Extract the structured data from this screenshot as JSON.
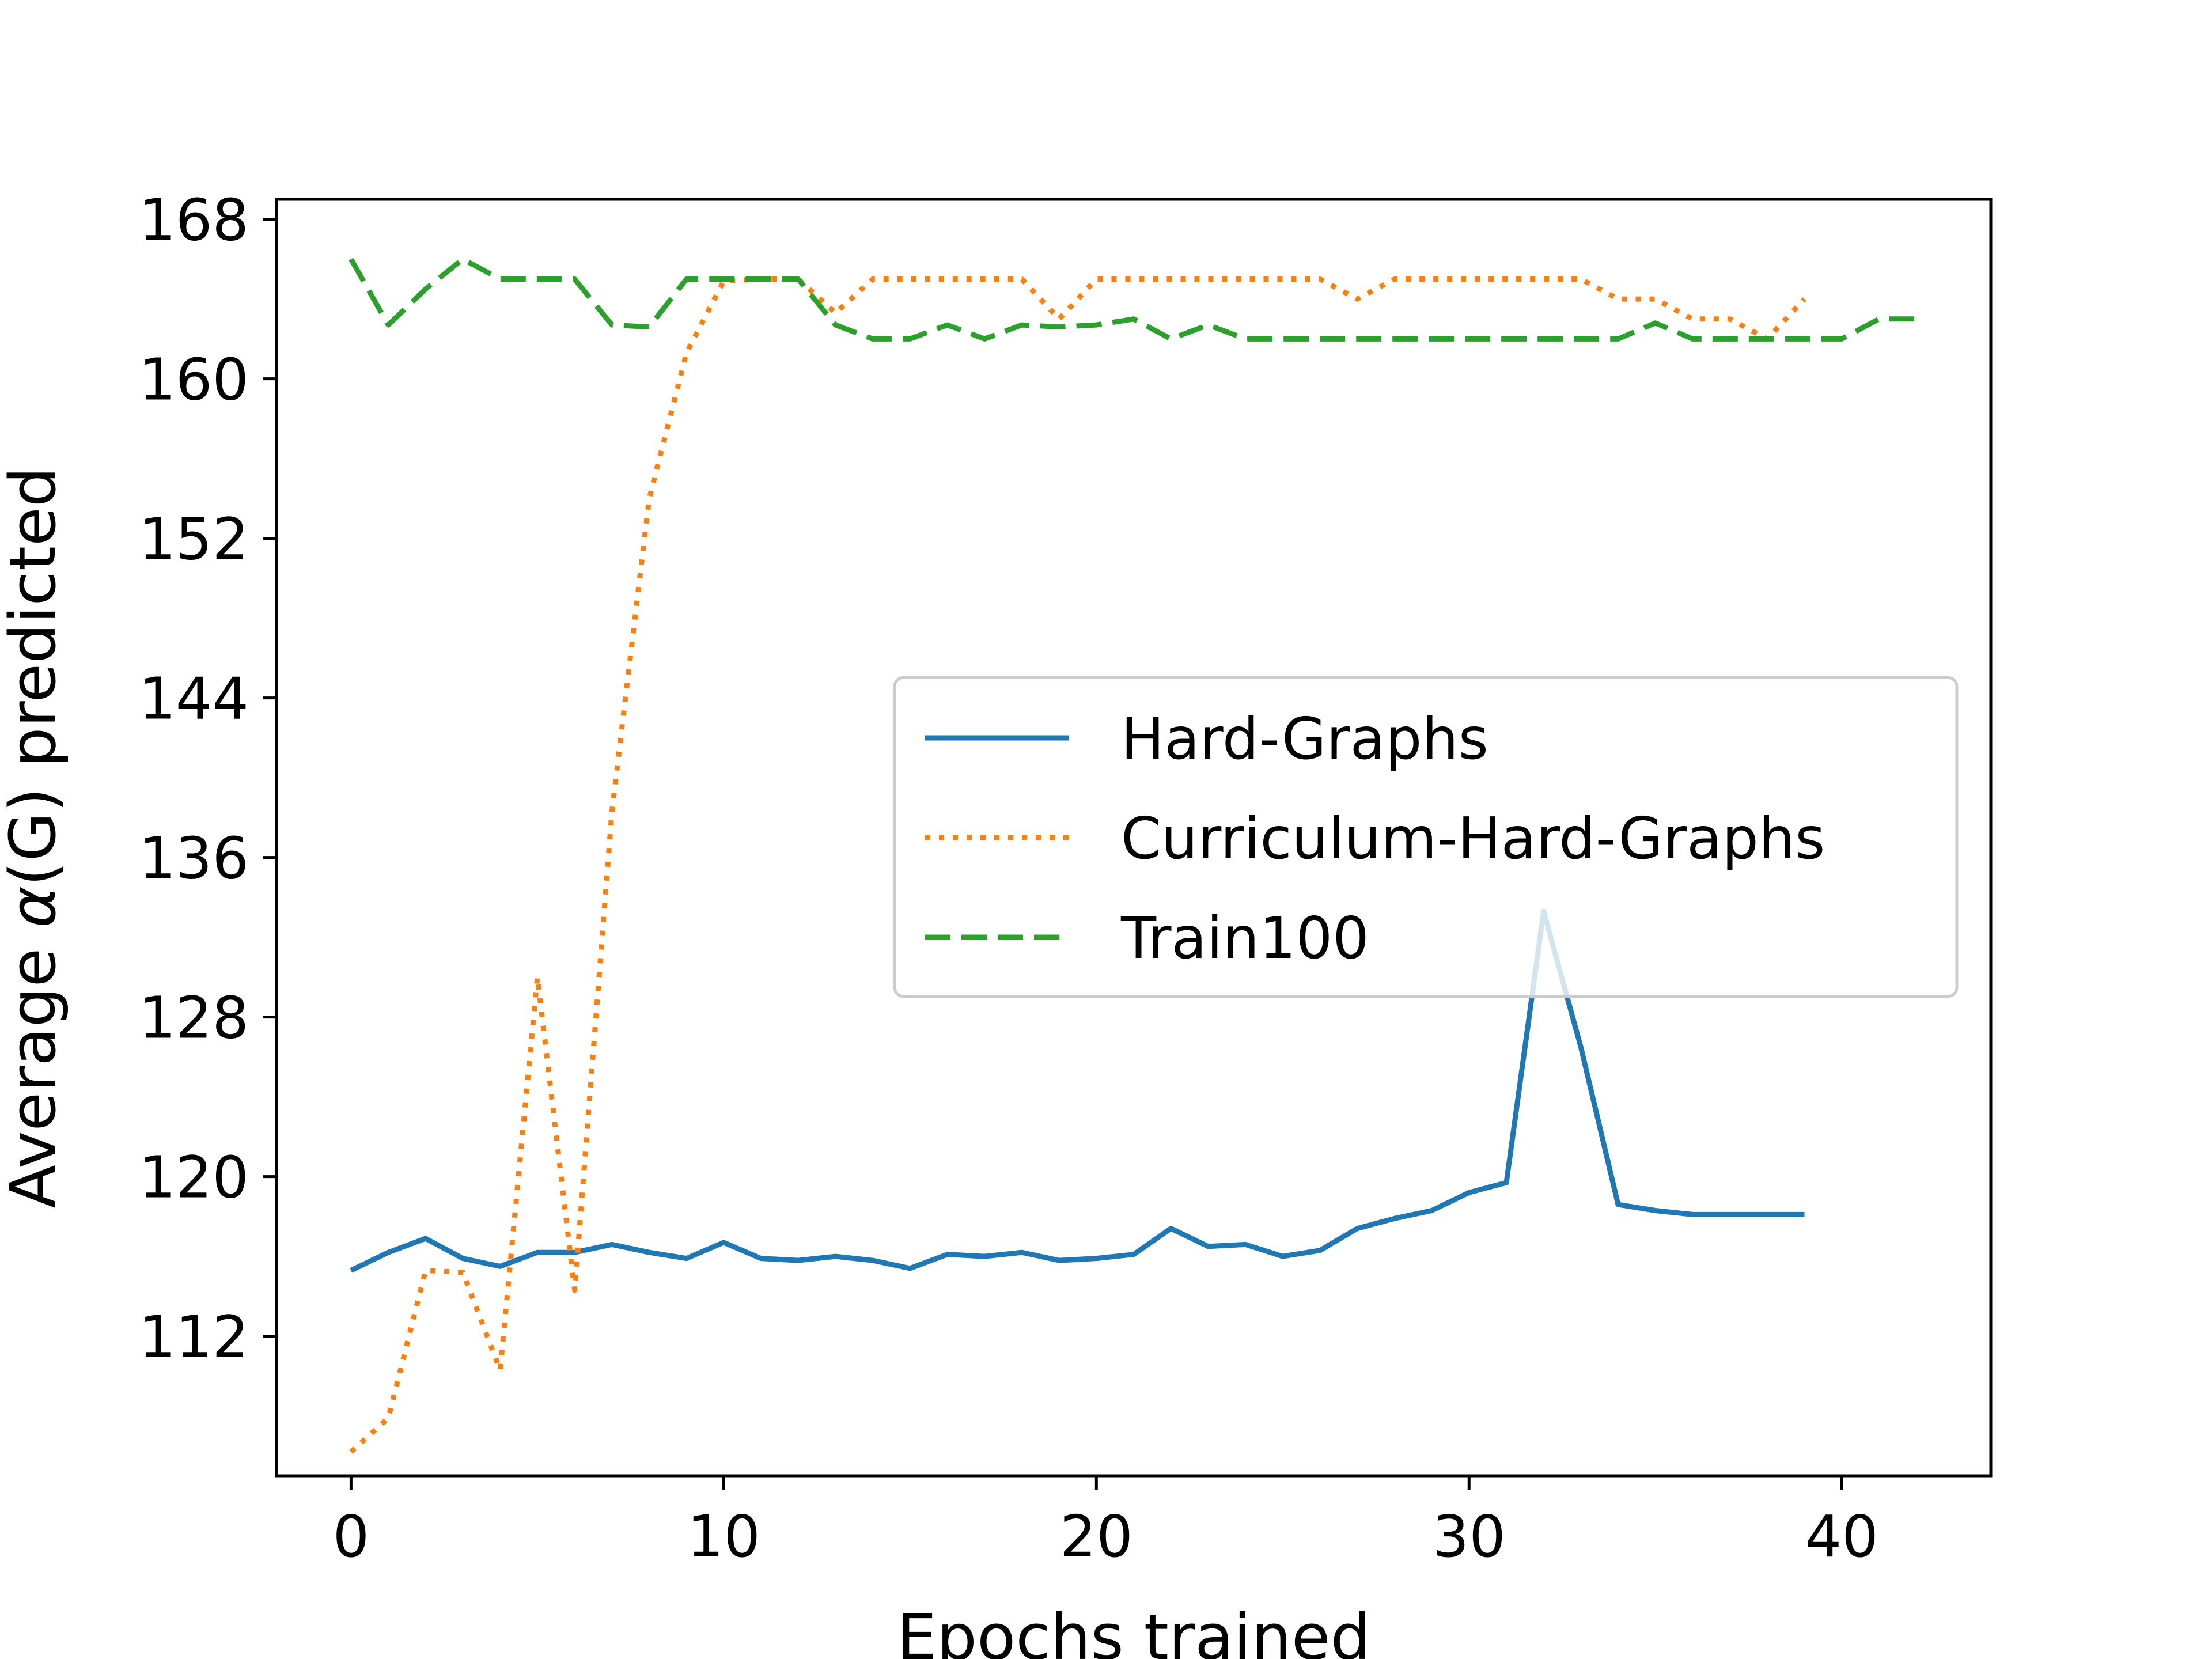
{
  "chart_data": {
    "type": "line",
    "xlabel": "Epochs trained",
    "ylabel_prefix": "Average ",
    "ylabel_symbol": "α",
    "ylabel_arg": "(G)",
    "ylabel_suffix": " predicted",
    "xlim": [
      -2,
      44
    ],
    "ylim": [
      105,
      169
    ],
    "xticks": [
      0,
      10,
      20,
      30,
      40
    ],
    "yticks": [
      112,
      120,
      128,
      136,
      144,
      152,
      160,
      168
    ],
    "grid": false,
    "legend_position": "center-right",
    "series": [
      {
        "name": "Hard-Graphs",
        "color": "#1f77b4",
        "style": "solid",
        "x": [
          0,
          1,
          2,
          3,
          4,
          5,
          6,
          7,
          8,
          9,
          10,
          11,
          12,
          13,
          14,
          15,
          16,
          17,
          18,
          19,
          20,
          21,
          22,
          23,
          24,
          25,
          26,
          27,
          28,
          29,
          30,
          31,
          32,
          33,
          34,
          35,
          36,
          37,
          38,
          39
        ],
        "y": [
          115.3,
          116.2,
          116.9,
          115.9,
          115.5,
          116.2,
          116.2,
          116.6,
          116.2,
          115.9,
          116.7,
          115.9,
          115.8,
          116.0,
          115.8,
          115.4,
          116.1,
          116.0,
          116.2,
          115.8,
          115.9,
          116.1,
          117.4,
          116.5,
          116.6,
          116.0,
          116.3,
          117.4,
          117.9,
          118.3,
          119.2,
          119.7,
          133.3,
          126.5,
          118.6,
          118.3,
          118.1,
          118.1,
          118.1,
          118.1
        ]
      },
      {
        "name": "Curriculum-Hard-Graphs",
        "color": "#ff7f0e",
        "style": "dotted",
        "x": [
          0,
          1,
          2,
          3,
          4,
          5,
          6,
          7,
          8,
          9,
          10,
          11,
          12,
          13,
          14,
          15,
          16,
          17,
          18,
          19,
          20,
          21,
          22,
          23,
          24,
          25,
          26,
          27,
          28,
          29,
          30,
          31,
          32,
          33,
          34,
          35,
          36,
          37,
          38,
          39
        ],
        "y": [
          106.2,
          107.9,
          115.3,
          115.2,
          110.3,
          130.0,
          114.3,
          138.3,
          154.0,
          161.3,
          164.9,
          165.0,
          165.0,
          163.3,
          165.0,
          165.0,
          165.0,
          165.0,
          165.0,
          163.0,
          165.0,
          165.0,
          165.0,
          165.0,
          165.0,
          165.0,
          165.0,
          164.0,
          165.0,
          165.0,
          165.0,
          165.0,
          165.0,
          165.0,
          164.0,
          164.0,
          163.0,
          163.0,
          162.0,
          164.0
        ]
      },
      {
        "name": "Train100",
        "color": "#2ca02c",
        "style": "dashed",
        "x": [
          0,
          1,
          2,
          3,
          4,
          5,
          6,
          7,
          8,
          9,
          10,
          11,
          12,
          13,
          14,
          15,
          16,
          17,
          18,
          19,
          20,
          21,
          22,
          23,
          24,
          25,
          26,
          27,
          28,
          29,
          30,
          31,
          32,
          33,
          34,
          35,
          36,
          37,
          38,
          39,
          40,
          41,
          42
        ],
        "y": [
          166.0,
          162.7,
          164.5,
          166.0,
          165.0,
          165.0,
          165.0,
          162.7,
          162.6,
          165.0,
          165.0,
          165.0,
          165.0,
          162.7,
          162.0,
          162.0,
          162.7,
          162.0,
          162.7,
          162.6,
          162.7,
          163.0,
          162.0,
          162.7,
          162.0,
          162.0,
          162.0,
          162.0,
          162.0,
          162.0,
          162.0,
          162.0,
          162.0,
          162.0,
          162.0,
          162.8,
          162.0,
          162.0,
          162.0,
          162.0,
          162.0,
          163.0,
          163.0
        ]
      }
    ]
  }
}
